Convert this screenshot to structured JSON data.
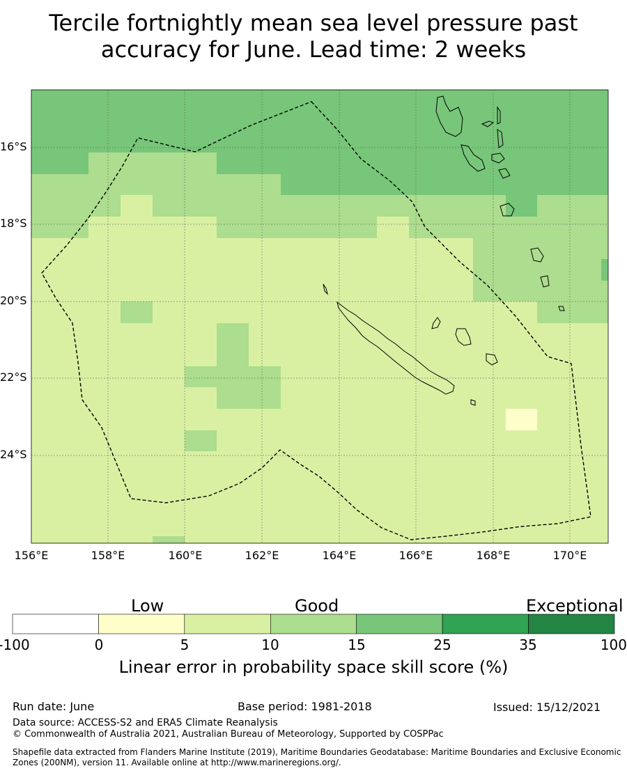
{
  "title_line1": "Tercile fortnightly mean sea level pressure past",
  "title_line2": "accuracy for June. Lead time: 2 weeks",
  "map": {
    "lat_labels": [
      "16°S",
      "18°S",
      "20°S",
      "22°S",
      "24°S"
    ],
    "lon_labels": [
      "156°E",
      "158°E",
      "160°E",
      "162°E",
      "164°E",
      "166°E",
      "168°E",
      "170°E"
    ],
    "colors": {
      "low": "#ffffcc",
      "light": "#d9f0a3",
      "mid": "#addd8e",
      "green": "#78c679",
      "dark": "#31a354",
      "darkest": "#238443"
    }
  },
  "colorbar": {
    "headings": [
      "Low",
      "Good",
      "Exceptional"
    ],
    "ticks": [
      "-100",
      "0",
      "5",
      "10",
      "15",
      "25",
      "35",
      "100"
    ],
    "colors": [
      "#ffffff",
      "#ffffcc",
      "#d9f0a3",
      "#addd8e",
      "#78c679",
      "#31a354",
      "#238443"
    ],
    "label": "Linear error in probability space skill score (%)"
  },
  "footer": {
    "run_date": "Run date: June",
    "base_period": "Base period: 1981-2018",
    "issued": "Issued: 15/12/2021",
    "data_source": "Data source: ACCESS-S2 and ERA5 Climate Reanalysis",
    "copyright": "© Commonwealth of Australia 2021, Australian Bureau of Meteorology, Supported by COSPPac",
    "shapefile_line1": "Shapefile data extracted from Flanders Marine Institute (2019), Maritime Boundaries Geodatabase: Maritime Boundaries and Exclusive Economic",
    "shapefile_line2": "Zones (200NM), version 11. Available online at http://www.marineregions.org/."
  }
}
